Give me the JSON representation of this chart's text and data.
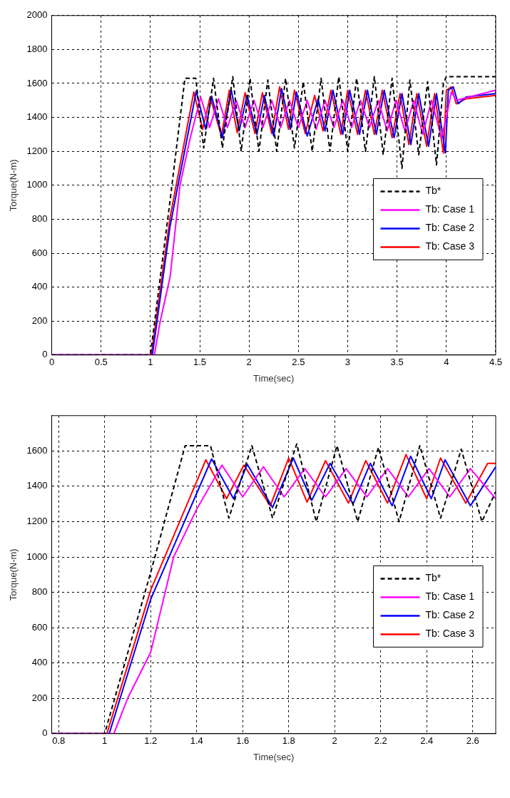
{
  "chart_data": [
    {
      "type": "line",
      "xlabel": "Time(sec)",
      "ylabel": "Torque(N-m)",
      "xlim": [
        0,
        4.5
      ],
      "ylim": [
        0,
        2000
      ],
      "xticks": [
        0,
        0.5,
        1,
        1.5,
        2,
        2.5,
        3,
        3.5,
        4,
        4.5
      ],
      "yticks": [
        0,
        200,
        400,
        600,
        800,
        1000,
        1200,
        1400,
        1600,
        1800,
        2000
      ],
      "grid": true,
      "legend": "right",
      "marker": "none",
      "series": [
        {
          "name": "Tb*",
          "color": "#000000",
          "line_style": "dashed",
          "x": [
            0,
            1.0,
            1.2,
            1.35,
            1.46,
            1.54,
            1.64,
            1.73,
            1.835,
            1.92,
            2.01,
            2.1,
            2.19,
            2.28,
            2.37,
            2.46,
            2.55,
            2.64,
            2.73,
            2.82,
            2.91,
            3.0,
            3.09,
            3.18,
            3.27,
            3.36,
            3.45,
            3.55,
            3.63,
            3.72,
            3.81,
            3.9,
            3.97,
            4.0,
            4.5
          ],
          "values": [
            0,
            0,
            912,
            1630,
            1630,
            1220,
            1630,
            1220,
            1640,
            1200,
            1630,
            1200,
            1620,
            1200,
            1630,
            1220,
            1610,
            1200,
            1630,
            1200,
            1640,
            1200,
            1630,
            1200,
            1640,
            1180,
            1630,
            1100,
            1620,
            1180,
            1610,
            1120,
            1600,
            1640,
            1640
          ]
        },
        {
          "name": "Tb: Case 1",
          "color": "#ff00ff",
          "line_style": "solid",
          "x": [
            0,
            1.04,
            1.1,
            1.2,
            1.3,
            1.4,
            1.51,
            1.6,
            1.69,
            1.78,
            1.87,
            1.96,
            2.05,
            2.14,
            2.23,
            2.32,
            2.41,
            2.5,
            2.59,
            2.68,
            2.77,
            2.86,
            2.95,
            3.04,
            3.13,
            3.22,
            3.31,
            3.4,
            3.49,
            3.58,
            3.67,
            3.76,
            3.85,
            3.95,
            4.0,
            4.05,
            4.1,
            4.5
          ],
          "values": [
            0,
            0,
            200,
            460,
            1000,
            1270,
            1520,
            1340,
            1510,
            1340,
            1500,
            1340,
            1500,
            1340,
            1500,
            1340,
            1500,
            1340,
            1500,
            1330,
            1500,
            1340,
            1500,
            1340,
            1500,
            1340,
            1500,
            1320,
            1500,
            1320,
            1500,
            1300,
            1500,
            1280,
            1400,
            1550,
            1500,
            1560
          ]
        },
        {
          "name": "Tb: Case 2",
          "color": "#0000ff",
          "line_style": "solid",
          "x": [
            0,
            1.02,
            1.2,
            1.465,
            1.56,
            1.62,
            1.73,
            1.82,
            1.9,
            1.98,
            2.08,
            2.155,
            2.25,
            2.33,
            2.42,
            2.48,
            2.59,
            2.7,
            2.77,
            2.85,
            2.95,
            3.02,
            3.12,
            3.2,
            3.29,
            3.37,
            3.47,
            3.55,
            3.64,
            3.72,
            3.82,
            3.9,
            3.99,
            4.02,
            4.07,
            4.12,
            4.2,
            4.5
          ],
          "values": [
            0,
            0,
            760,
            1555,
            1330,
            1525,
            1280,
            1560,
            1320,
            1530,
            1300,
            1530,
            1290,
            1570,
            1330,
            1550,
            1290,
            1510,
            1320,
            1560,
            1300,
            1560,
            1300,
            1560,
            1300,
            1560,
            1280,
            1540,
            1240,
            1540,
            1230,
            1540,
            1190,
            1560,
            1580,
            1480,
            1520,
            1540
          ]
        },
        {
          "name": "Tb: Case 3",
          "color": "#ff0000",
          "line_style": "solid",
          "x": [
            0,
            1.01,
            1.2,
            1.44,
            1.53,
            1.605,
            1.72,
            1.8,
            1.88,
            1.96,
            2.06,
            2.135,
            2.23,
            2.31,
            2.4,
            2.46,
            2.57,
            2.665,
            2.75,
            2.83,
            2.93,
            3.0,
            3.1,
            3.18,
            3.27,
            3.35,
            3.45,
            3.53,
            3.62,
            3.7,
            3.8,
            3.88,
            3.97,
            4.0,
            4.05,
            4.1,
            4.2,
            4.5
          ],
          "values": [
            0,
            0,
            812,
            1550,
            1330,
            1520,
            1290,
            1560,
            1310,
            1545,
            1305,
            1545,
            1305,
            1580,
            1330,
            1560,
            1305,
            1530,
            1320,
            1560,
            1300,
            1560,
            1300,
            1560,
            1300,
            1560,
            1280,
            1540,
            1240,
            1540,
            1230,
            1540,
            1190,
            1560,
            1580,
            1480,
            1510,
            1530
          ]
        }
      ]
    },
    {
      "type": "line",
      "xlabel": "Time(sec)",
      "ylabel": "Torque(N-m)",
      "xlim": [
        0.77,
        2.7
      ],
      "ylim": [
        0,
        1800
      ],
      "xticks": [
        0.8,
        1,
        1.2,
        1.4,
        1.6,
        1.8,
        2,
        2.2,
        2.4,
        2.6
      ],
      "yticks": [
        0,
        200,
        400,
        600,
        800,
        1000,
        1200,
        1400,
        1600
      ],
      "grid": true,
      "legend": "right",
      "marker": "none",
      "series": [
        {
          "name": "Tb*",
          "color": "#000000",
          "line_style": "dashed",
          "x": [
            0.77,
            1.0,
            1.2,
            1.35,
            1.46,
            1.54,
            1.64,
            1.73,
            1.835,
            1.92,
            2.01,
            2.1,
            2.19,
            2.28,
            2.37,
            2.46,
            2.55,
            2.64,
            2.7
          ],
          "values": [
            0,
            0,
            912,
            1630,
            1630,
            1220,
            1630,
            1220,
            1640,
            1200,
            1630,
            1200,
            1620,
            1200,
            1630,
            1220,
            1610,
            1200,
            1370
          ]
        },
        {
          "name": "Tb: Case 1",
          "color": "#ff00ff",
          "line_style": "solid",
          "x": [
            0.77,
            1.04,
            1.1,
            1.2,
            1.3,
            1.4,
            1.51,
            1.6,
            1.69,
            1.78,
            1.87,
            1.96,
            2.05,
            2.14,
            2.23,
            2.32,
            2.41,
            2.5,
            2.59,
            2.7
          ],
          "values": [
            0,
            0,
            200,
            460,
            1000,
            1270,
            1520,
            1340,
            1510,
            1340,
            1500,
            1340,
            1500,
            1340,
            1500,
            1340,
            1500,
            1340,
            1500,
            1330
          ]
        },
        {
          "name": "Tb: Case 2",
          "color": "#0000ff",
          "line_style": "solid",
          "x": [
            0.77,
            1.02,
            1.2,
            1.465,
            1.56,
            1.62,
            1.73,
            1.82,
            1.9,
            1.98,
            2.08,
            2.155,
            2.25,
            2.33,
            2.42,
            2.48,
            2.59,
            2.7
          ],
          "values": [
            0,
            0,
            760,
            1555,
            1330,
            1525,
            1280,
            1560,
            1320,
            1530,
            1300,
            1530,
            1290,
            1570,
            1330,
            1550,
            1290,
            1510
          ]
        },
        {
          "name": "Tb: Case 3",
          "color": "#ff0000",
          "line_style": "solid",
          "x": [
            0.77,
            1.01,
            1.2,
            1.44,
            1.53,
            1.605,
            1.72,
            1.8,
            1.88,
            1.96,
            2.06,
            2.135,
            2.23,
            2.31,
            2.4,
            2.46,
            2.57,
            2.665,
            2.7
          ],
          "values": [
            0,
            0,
            812,
            1550,
            1330,
            1520,
            1290,
            1560,
            1310,
            1545,
            1305,
            1545,
            1305,
            1580,
            1330,
            1560,
            1305,
            1530,
            1530
          ]
        }
      ]
    }
  ]
}
